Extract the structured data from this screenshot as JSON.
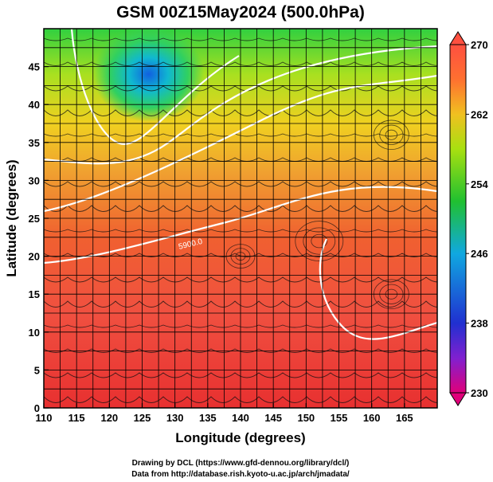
{
  "chart_data": {
    "type": "heatmap",
    "title": "GSM 00Z15May2024 (500.0hPa)",
    "xlabel": "Longitude (degrees)",
    "ylabel": "Latitude  (degrees)",
    "xlim": [
      110,
      170
    ],
    "ylim": [
      0,
      50
    ],
    "x_ticks": [
      "110",
      "115",
      "120",
      "125",
      "130",
      "135",
      "140",
      "145",
      "150",
      "155",
      "160",
      "165"
    ],
    "y_ticks": [
      "0",
      "5",
      "10",
      "15",
      "20",
      "25",
      "30",
      "35",
      "40",
      "45"
    ],
    "colorbar": {
      "ticks": [
        "230",
        "238",
        "246",
        "254",
        "262",
        "270"
      ],
      "range": [
        230,
        270
      ],
      "colors": [
        "#e0007a",
        "#2222c8",
        "#1aa0e0",
        "#22c020",
        "#a0e010",
        "#f0a020",
        "#ff5030"
      ]
    },
    "contour_labels": [
      "5900.0"
    ],
    "grid": true
  },
  "credits": {
    "line1": "Drawing by DCL (https://www.gfd-dennou.org/library/dcl/)",
    "line2": "Data from http://database.rish.kyoto-u.ac.jp/arch/jmadata/"
  }
}
